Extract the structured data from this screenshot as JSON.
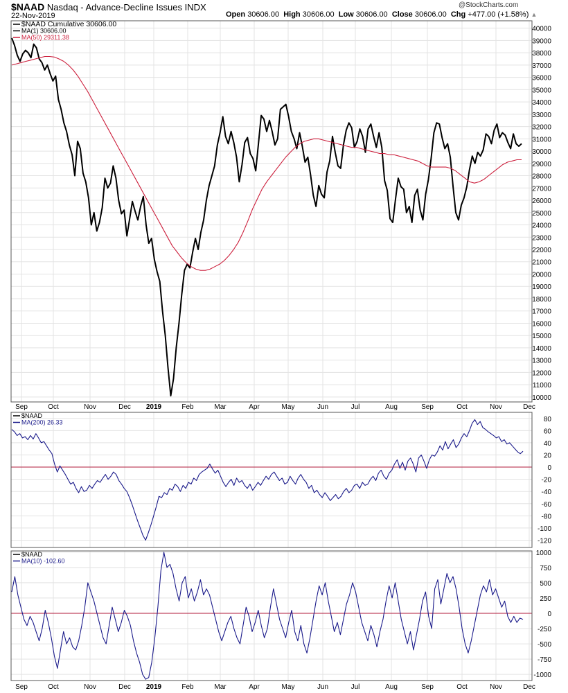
{
  "header": {
    "symbol": "$NAAD",
    "description": "Nasdaq - Advance-Decline Issues",
    "exchange": "INDX",
    "date": "22-Nov-2019",
    "open_label": "Open",
    "open": "30606.00",
    "high_label": "High",
    "high": "30606.00",
    "low_label": "Low",
    "low": "30606.00",
    "close_label": "Close",
    "close": "30606.00",
    "chg_label": "Chg",
    "chg": "+477.00 (+1.58%)",
    "copyright": "@StockCharts.com"
  },
  "colors": {
    "black": "#000000",
    "red": "#cc1f3c",
    "blue": "#1a1a8a",
    "grid": "#e3e3e3",
    "zero": "#b0193a"
  },
  "chart_data": [
    {
      "type": "line",
      "name": "main",
      "legend": [
        "$NAAD Cumulative 30606.00",
        "MA(1) 30606.00",
        "MA(50) 29311.38"
      ],
      "ylim": [
        9600,
        40600
      ],
      "yticks": [
        10000,
        11000,
        12000,
        13000,
        14000,
        15000,
        16000,
        17000,
        18000,
        19000,
        20000,
        21000,
        22000,
        23000,
        24000,
        25000,
        26000,
        27000,
        28000,
        29000,
        30000,
        31000,
        32000,
        33000,
        34000,
        35000,
        36000,
        37000,
        38000,
        39000,
        40000
      ],
      "series": [
        {
          "name": "$NAAD Cumulative",
          "color": "#000000",
          "values": [
            39200,
            38600,
            37800,
            37300,
            37900,
            38200,
            38000,
            37600,
            38700,
            38400,
            37500,
            37200,
            36600,
            37000,
            36300,
            35700,
            36100,
            34200,
            33400,
            32300,
            31600,
            30500,
            29700,
            28000,
            30800,
            30200,
            28200,
            27500,
            26200,
            24000,
            25000,
            23500,
            24200,
            25400,
            27800,
            27000,
            27400,
            28800,
            27800,
            26000,
            24900,
            25200,
            23100,
            24500,
            25900,
            25100,
            24400,
            25500,
            26300,
            24000,
            22500,
            22900,
            21200,
            20200,
            19400,
            17000,
            15000,
            12400,
            10100,
            11500,
            14000,
            16000,
            18300,
            20300,
            20800,
            20500,
            21800,
            22900,
            22000,
            23400,
            24400,
            26000,
            27200,
            28000,
            28800,
            30500,
            31500,
            32800,
            31200,
            30600,
            31600,
            30700,
            29500,
            27500,
            28900,
            30700,
            31100,
            29800,
            29400,
            28400,
            30600,
            32900,
            32600,
            31600,
            32500,
            31600,
            30500,
            31000,
            33400,
            33600,
            33800,
            32800,
            31600,
            31000,
            30200,
            31500,
            30400,
            29100,
            29500,
            28100,
            26400,
            25500,
            27200,
            26500,
            26200,
            28300,
            29200,
            31200,
            29900,
            28800,
            28600,
            30500,
            31700,
            32300,
            31900,
            30300,
            30800,
            31800,
            31200,
            29900,
            31800,
            32200,
            31200,
            30300,
            31500,
            30300,
            27600,
            26800,
            24500,
            24200,
            26100,
            27800,
            27100,
            26900,
            25000,
            25500,
            24200,
            26400,
            26900,
            25200,
            24400,
            26500,
            27700,
            29400,
            31500,
            32300,
            32200,
            31100,
            30200,
            30600,
            29500,
            27100,
            25000,
            24400,
            25600,
            26200,
            27100,
            28500,
            29600,
            29000,
            29900,
            29600,
            30100,
            31400,
            31200,
            30600,
            31700,
            32200,
            31100,
            31500,
            31300,
            30700,
            30200,
            31400,
            30600,
            30400,
            30606
          ]
        },
        {
          "name": "MA(50)",
          "color": "#cc1f3c",
          "values": [
            37000,
            37100,
            37200,
            37300,
            37400,
            37500,
            37600,
            37700,
            37700,
            37650,
            37500,
            37300,
            37000,
            36600,
            36100,
            35500,
            34900,
            34200,
            33500,
            32800,
            32100,
            31400,
            30700,
            30000,
            29300,
            28600,
            27900,
            27200,
            26500,
            25800,
            25100,
            24400,
            23700,
            23000,
            22300,
            21800,
            21300,
            20900,
            20600,
            20400,
            20300,
            20300,
            20400,
            20600,
            20800,
            21100,
            21500,
            22000,
            22600,
            23400,
            24300,
            25300,
            26100,
            26900,
            27500,
            28000,
            28500,
            29000,
            29500,
            29900,
            30300,
            30600,
            30800,
            30900,
            31000,
            31000,
            30900,
            30800,
            30700,
            30600,
            30500,
            30400,
            30300,
            30300,
            30200,
            30100,
            30000,
            29900,
            29800,
            29800,
            29700,
            29700,
            29600,
            29500,
            29400,
            29300,
            29200,
            29000,
            28800,
            28700,
            28700,
            28700,
            28700,
            28600,
            28400,
            28100,
            27800,
            27500,
            27400,
            27500,
            27700,
            28000,
            28300,
            28600,
            28900,
            29100,
            29200,
            29300,
            29300
          ]
        }
      ]
    },
    {
      "type": "line",
      "name": "ma200",
      "legend": [
        "$NAAD",
        "MA(200) 26.33"
      ],
      "ylim": [
        -132,
        90
      ],
      "yticks": [
        -120,
        -100,
        -80,
        -60,
        -40,
        -20,
        0,
        20,
        40,
        60,
        80
      ],
      "zero_line": 0,
      "series": [
        {
          "name": "MA(200)",
          "color": "#1a1a8a",
          "values": [
            62,
            58,
            52,
            55,
            48,
            50,
            45,
            52,
            46,
            55,
            48,
            40,
            42,
            35,
            28,
            22,
            5,
            -8,
            2,
            -5,
            -12,
            -20,
            -28,
            -25,
            -35,
            -42,
            -32,
            -40,
            -38,
            -30,
            -35,
            -28,
            -22,
            -25,
            -18,
            -12,
            -20,
            -15,
            -8,
            -12,
            -22,
            -28,
            -35,
            -40,
            -50,
            -62,
            -75,
            -88,
            -100,
            -112,
            -120,
            -108,
            -95,
            -80,
            -65,
            -48,
            -50,
            -42,
            -45,
            -35,
            -38,
            -28,
            -32,
            -40,
            -30,
            -35,
            -25,
            -28,
            -18,
            -22,
            -12,
            -8,
            -5,
            -2,
            5,
            -3,
            -10,
            -5,
            -15,
            -25,
            -32,
            -25,
            -20,
            -30,
            -18,
            -25,
            -22,
            -30,
            -35,
            -28,
            -38,
            -32,
            -25,
            -30,
            -22,
            -15,
            -20,
            -12,
            -8,
            -15,
            -22,
            -18,
            -28,
            -25,
            -15,
            -22,
            -28,
            -18,
            -12,
            -20,
            -25,
            -35,
            -30,
            -42,
            -38,
            -45,
            -50,
            -42,
            -48,
            -55,
            -50,
            -45,
            -52,
            -48,
            -40,
            -35,
            -42,
            -38,
            -30,
            -28,
            -35,
            -25,
            -30,
            -28,
            -20,
            -15,
            -22,
            -10,
            -5,
            -15,
            -20,
            -10,
            -5,
            5,
            12,
            -2,
            8,
            -5,
            10,
            15,
            5,
            -8,
            15,
            20,
            10,
            -2,
            12,
            20,
            18,
            25,
            35,
            28,
            42,
            30,
            38,
            45,
            32,
            38,
            48,
            55,
            50,
            60,
            72,
            78,
            70,
            75,
            65,
            62,
            58,
            55,
            52,
            48,
            50,
            42,
            45,
            38,
            40,
            35,
            30,
            25,
            22,
            26
          ]
        }
      ]
    },
    {
      "type": "line",
      "name": "ma10",
      "legend": [
        "$NAAD",
        "MA(10) -102.60"
      ],
      "ylim": [
        -1100,
        1020
      ],
      "yticks": [
        -1000,
        -750,
        -500,
        -250,
        0,
        250,
        500,
        750,
        1000
      ],
      "zero_line": 0,
      "series": [
        {
          "name": "MA(10)",
          "color": "#1a1a8a",
          "values": [
            350,
            600,
            300,
            100,
            -100,
            -200,
            -50,
            -150,
            -300,
            -450,
            -250,
            50,
            -150,
            -400,
            -700,
            -900,
            -600,
            -300,
            -500,
            -400,
            -550,
            -600,
            -450,
            -200,
            100,
            500,
            350,
            200,
            0,
            -200,
            -400,
            -500,
            -200,
            100,
            -100,
            -300,
            -150,
            50,
            -50,
            -200,
            -450,
            -650,
            -800,
            -1000,
            -1080,
            -1050,
            -800,
            -400,
            100,
            700,
            1000,
            750,
            800,
            650,
            400,
            200,
            500,
            600,
            250,
            400,
            200,
            350,
            550,
            300,
            400,
            300,
            100,
            -100,
            -300,
            -450,
            -300,
            -150,
            -50,
            -250,
            -400,
            -500,
            -200,
            100,
            -50,
            -300,
            -150,
            50,
            -200,
            -400,
            -250,
            100,
            400,
            150,
            -100,
            -250,
            -400,
            -150,
            50,
            -300,
            -450,
            -200,
            -500,
            -650,
            -400,
            -100,
            200,
            450,
            300,
            500,
            200,
            -50,
            -300,
            -150,
            -350,
            -100,
            150,
            300,
            500,
            350,
            100,
            -150,
            -300,
            -450,
            -200,
            -350,
            -550,
            -300,
            -100,
            200,
            450,
            250,
            500,
            200,
            -100,
            -300,
            -500,
            -300,
            -600,
            -350,
            -100,
            200,
            350,
            -50,
            -250,
            400,
            550,
            150,
            400,
            650,
            500,
            600,
            400,
            100,
            -250,
            -500,
            -650,
            -450,
            -200,
            50,
            300,
            450,
            350,
            550,
            300,
            400,
            250,
            100,
            200,
            -50,
            -150,
            -50,
            -150,
            -80,
            -100
          ]
        }
      ]
    }
  ],
  "x_axis": {
    "months": [
      "Sep",
      "Oct",
      "Nov",
      "Dec",
      "2019",
      "Feb",
      "Mar",
      "Apr",
      "May",
      "Jun",
      "Jul",
      "Aug",
      "Sep",
      "Oct",
      "Nov",
      "Dec"
    ],
    "bold_label": "2019"
  }
}
